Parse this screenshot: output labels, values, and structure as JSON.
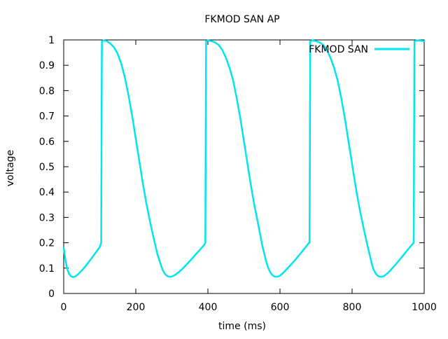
{
  "chart_data": {
    "type": "line",
    "title": "FKMOD SAN AP",
    "xlabel": "time (ms)",
    "ylabel": "voltage",
    "xlim": [
      0,
      1000
    ],
    "ylim": [
      0,
      1
    ],
    "xticks": [
      0,
      200,
      400,
      600,
      800,
      1000
    ],
    "yticks": [
      0,
      0.1,
      0.2,
      0.3,
      0.4,
      0.5,
      0.6,
      0.7,
      0.8,
      0.9,
      1
    ],
    "grid": false,
    "legend_position": "top-right",
    "series": [
      {
        "name": "FKMOD SAN",
        "color": "#00e5ee",
        "x": [
          0,
          5,
          10,
          15,
          20,
          25,
          30,
          35,
          40,
          50,
          60,
          70,
          80,
          90,
          100,
          104,
          105,
          106,
          110,
          115,
          120,
          130,
          140,
          150,
          160,
          170,
          180,
          190,
          200,
          210,
          220,
          230,
          240,
          250,
          260,
          270,
          275,
          280,
          285,
          290,
          295,
          300,
          305,
          310,
          320,
          330,
          340,
          350,
          360,
          370,
          380,
          390,
          393,
          394,
          395,
          400,
          410,
          420,
          430,
          440,
          450,
          460,
          470,
          480,
          490,
          500,
          510,
          520,
          530,
          540,
          550,
          560,
          565,
          570,
          575,
          580,
          585,
          590,
          595,
          600,
          610,
          620,
          630,
          640,
          650,
          660,
          670,
          680,
          682,
          683,
          684,
          690,
          700,
          710,
          720,
          730,
          740,
          750,
          760,
          770,
          780,
          790,
          800,
          810,
          820,
          830,
          840,
          850,
          855,
          860,
          865,
          870,
          875,
          880,
          885,
          890,
          900,
          910,
          920,
          930,
          940,
          950,
          960,
          970,
          971,
          972,
          973,
          980,
          990,
          1000
        ],
        "values": [
          0.18,
          0.13,
          0.095,
          0.078,
          0.068,
          0.065,
          0.066,
          0.07,
          0.076,
          0.09,
          0.107,
          0.125,
          0.144,
          0.163,
          0.183,
          0.2,
          0.62,
          0.995,
          0.998,
          0.997,
          0.995,
          0.985,
          0.97,
          0.945,
          0.905,
          0.85,
          0.78,
          0.7,
          0.61,
          0.52,
          0.43,
          0.35,
          0.28,
          0.215,
          0.155,
          0.11,
          0.092,
          0.079,
          0.071,
          0.067,
          0.066,
          0.067,
          0.07,
          0.074,
          0.085,
          0.098,
          0.113,
          0.128,
          0.144,
          0.16,
          0.176,
          0.192,
          0.2,
          0.62,
          0.995,
          0.998,
          0.995,
          0.99,
          0.98,
          0.96,
          0.93,
          0.89,
          0.84,
          0.77,
          0.69,
          0.6,
          0.51,
          0.42,
          0.34,
          0.27,
          0.195,
          0.135,
          0.11,
          0.092,
          0.079,
          0.071,
          0.067,
          0.066,
          0.067,
          0.07,
          0.083,
          0.098,
          0.113,
          0.129,
          0.146,
          0.163,
          0.181,
          0.199,
          0.2,
          0.62,
          0.995,
          0.998,
          0.995,
          0.99,
          0.98,
          0.96,
          0.93,
          0.89,
          0.84,
          0.77,
          0.69,
          0.6,
          0.51,
          0.42,
          0.34,
          0.27,
          0.205,
          0.145,
          0.115,
          0.093,
          0.08,
          0.071,
          0.067,
          0.066,
          0.067,
          0.07,
          0.082,
          0.097,
          0.113,
          0.13,
          0.147,
          0.165,
          0.182,
          0.199,
          0.2,
          0.62,
          0.995,
          0.998,
          0.997,
          0.995
        ]
      }
    ]
  }
}
